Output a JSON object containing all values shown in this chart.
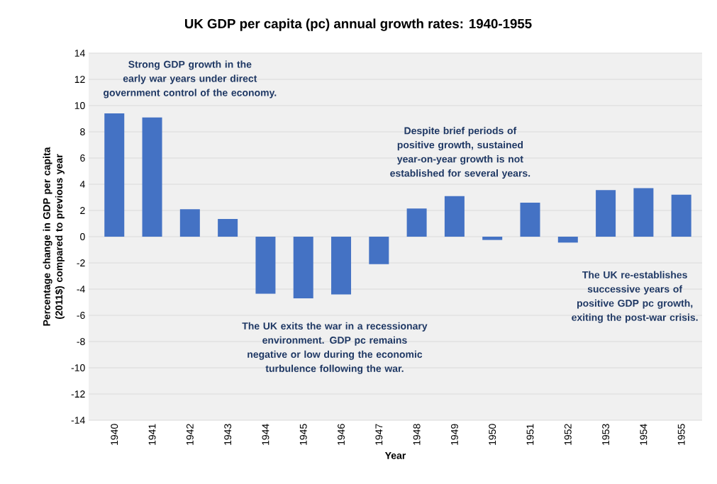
{
  "chart_data": {
    "type": "bar",
    "title": "UK GDP per capita (pc) annual growth rates: 1940-1955",
    "xlabel": "Year",
    "ylabel": "Percentage change in GDP per capita (2011$) compared to previous year",
    "categories": [
      "1940",
      "1941",
      "1942",
      "1943",
      "1944",
      "1945",
      "1946",
      "1947",
      "1948",
      "1949",
      "1950",
      "1951",
      "1952",
      "1953",
      "1954",
      "1955"
    ],
    "values": [
      9.4,
      9.1,
      2.1,
      1.35,
      -4.35,
      -4.7,
      -4.4,
      -2.1,
      2.15,
      3.1,
      -0.25,
      2.6,
      -0.45,
      3.55,
      3.7,
      3.2
    ],
    "color": "#4472c4",
    "ylim": [
      -14,
      14
    ],
    "yticks": [
      -14,
      -12,
      -10,
      -8,
      -6,
      -4,
      -2,
      0,
      2,
      4,
      6,
      8,
      10,
      12,
      14
    ],
    "grid": "y",
    "annotations": [
      "Strong GDP growth in the early war years under direct government control of the economy.",
      "Despite brief periods of positive growth, sustained year-on-year growth is not established for several years.",
      "The UK exits the war in a recessionary environment. GDP pc remains negative or low during the economic turbulence following the war.",
      "The UK re-establishes successive years of positive GDP pc growth, exiting the post-war crisis."
    ]
  }
}
